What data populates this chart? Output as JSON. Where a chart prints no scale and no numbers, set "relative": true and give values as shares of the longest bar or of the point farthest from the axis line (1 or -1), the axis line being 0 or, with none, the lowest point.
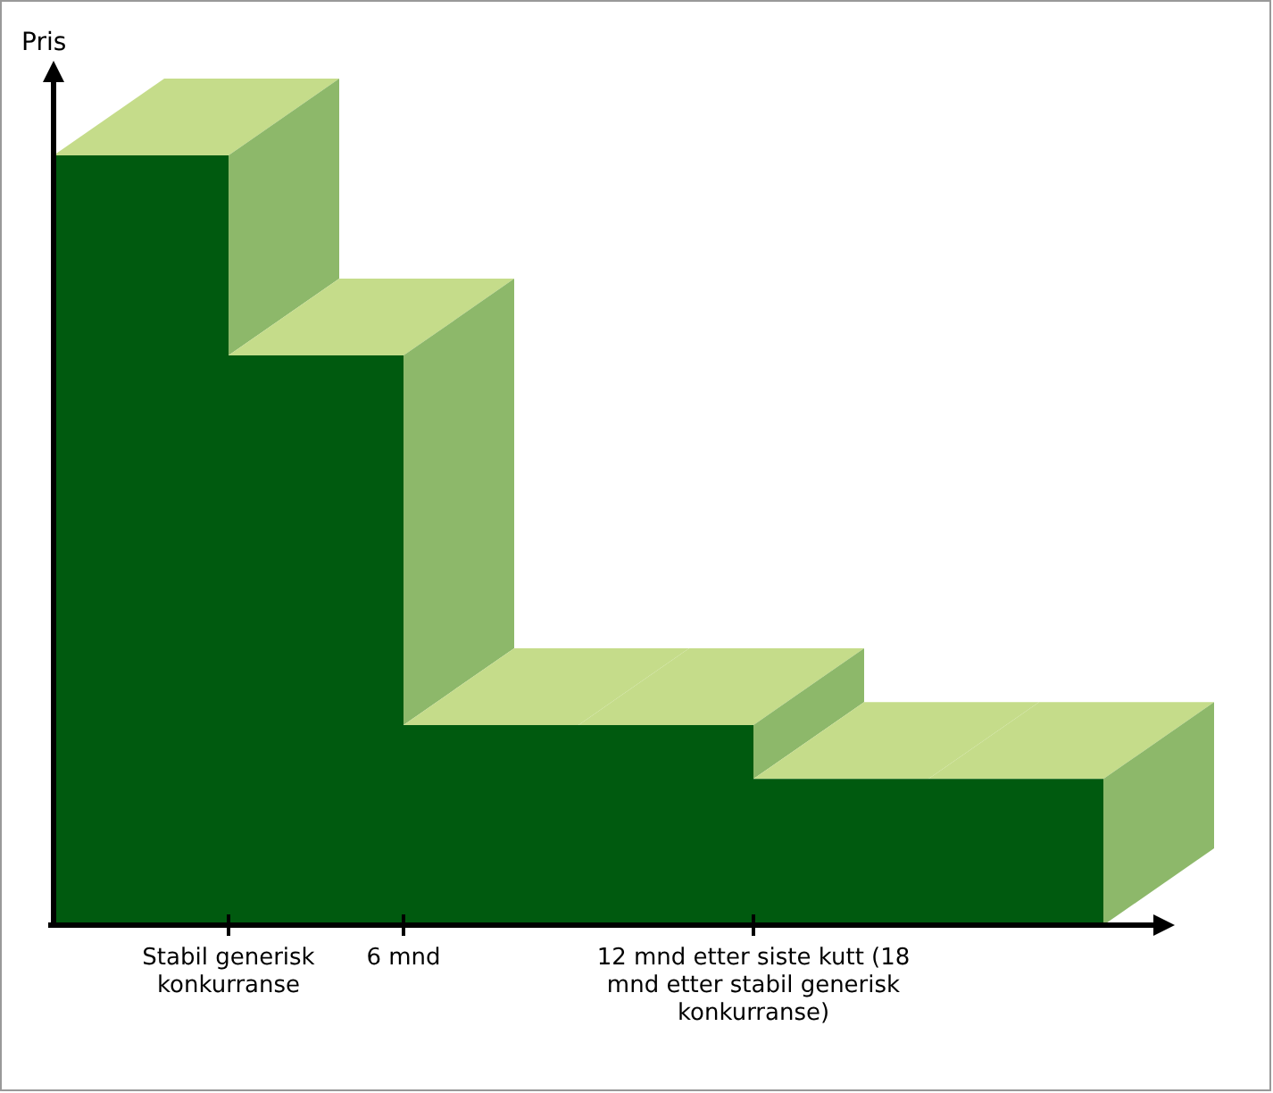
{
  "chart_data": {
    "type": "area",
    "relative": true,
    "ylabel": "Pris",
    "categories": [
      null,
      "Stabil generisk konkurranse",
      "6 mnd",
      null,
      "12 mnd etter siste kutt (18 mnd etter stabil generisk konkurranse)",
      null,
      null
    ],
    "values": [
      1,
      0.74,
      0.26,
      0.26,
      0.19,
      0.19,
      0.19
    ],
    "color": "#005a0f"
  }
}
